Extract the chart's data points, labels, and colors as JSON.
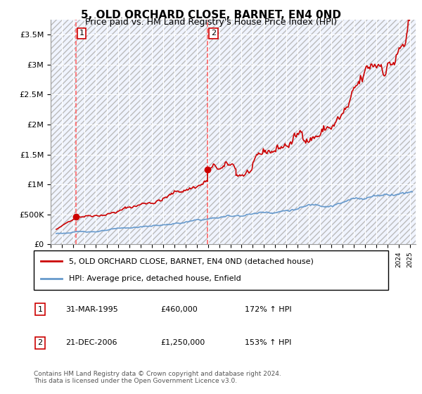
{
  "title": "5, OLD ORCHARD CLOSE, BARNET, EN4 0ND",
  "subtitle": "Price paid vs. HM Land Registry's House Price Index (HPI)",
  "legend_line1": "5, OLD ORCHARD CLOSE, BARNET, EN4 0ND (detached house)",
  "legend_line2": "HPI: Average price, detached house, Enfield",
  "table_rows": [
    {
      "num": "1",
      "date": "31-MAR-1995",
      "price": "£460,000",
      "hpi": "172% ↑ HPI"
    },
    {
      "num": "2",
      "date": "21-DEC-2006",
      "price": "£1,250,000",
      "hpi": "153% ↑ HPI"
    }
  ],
  "footer": "Contains HM Land Registry data © Crown copyright and database right 2024.\nThis data is licensed under the Open Government Licence v3.0.",
  "sale1_year": 1995.25,
  "sale1_price": 460000,
  "sale2_year": 2006.97,
  "sale2_price": 1250000,
  "red_line_color": "#cc0000",
  "blue_line_color": "#6699cc",
  "dashed_line_color": "#ff6666",
  "hatch_color": "#cccccc",
  "background_plot": "#f0f4ff",
  "ylim_max": 3750000,
  "xlim_min": 1993,
  "xlim_max": 2025.5
}
